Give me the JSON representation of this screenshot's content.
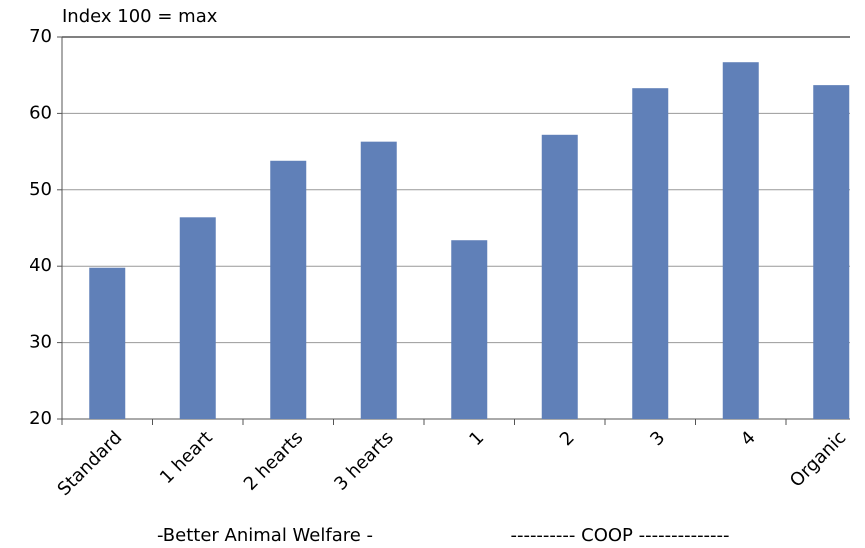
{
  "chart_data": {
    "type": "bar",
    "title": "Index 100 = max",
    "categories": [
      "Standard",
      "1 heart",
      "2 hearts",
      "3 hearts",
      "1",
      "2",
      "3",
      "4",
      "Organic"
    ],
    "values": [
      39.8,
      46.4,
      53.8,
      56.3,
      43.4,
      57.2,
      63.3,
      66.7,
      63.7
    ],
    "color": "#6080b8",
    "ylim": [
      20,
      70
    ],
    "yticks": [
      20,
      30,
      40,
      50,
      60,
      70
    ],
    "grid": true,
    "annotations": [
      "-Better Animal Welfare -",
      "---------- COOP --------------"
    ]
  }
}
